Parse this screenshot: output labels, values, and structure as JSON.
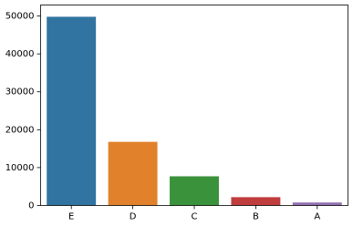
{
  "chart_data": {
    "type": "bar",
    "categories": [
      "E",
      "D",
      "C",
      "B",
      "A"
    ],
    "values": [
      49800,
      16800,
      7700,
      2200,
      800
    ],
    "colors": [
      "#3274a1",
      "#e1812c",
      "#3a923a",
      "#c03d3e",
      "#9372b2"
    ],
    "ylim": [
      0,
      52900
    ],
    "yticks": [
      0,
      10000,
      20000,
      30000,
      40000,
      50000
    ]
  }
}
